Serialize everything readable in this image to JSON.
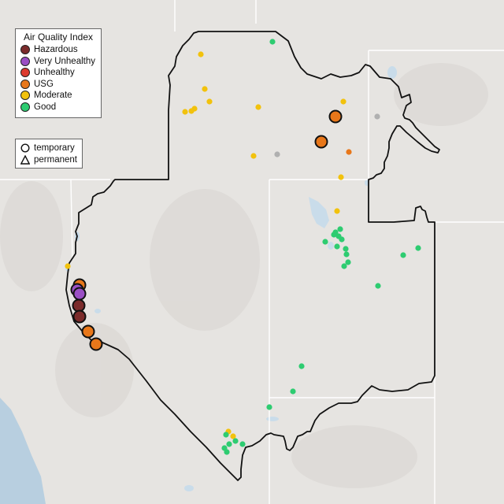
{
  "legend": {
    "title": "Air Quality Index",
    "categories": [
      {
        "label": "Hazardous",
        "color": "#7b2b2b"
      },
      {
        "label": "Very Unhealthy",
        "color": "#9a4fc4"
      },
      {
        "label": "Unhealthy",
        "color": "#dc3b2f"
      },
      {
        "label": "USG",
        "color": "#e8771a"
      },
      {
        "label": "Moderate",
        "color": "#f2c20d"
      },
      {
        "label": "Good",
        "color": "#2ecc71"
      }
    ],
    "types": [
      {
        "label": "temporary",
        "shape": "circle-icon"
      },
      {
        "label": "permanent",
        "shape": "triangle-icon"
      }
    ]
  },
  "map_colors": {
    "land": "#e6e4e1",
    "ocean": "#b8cfe0",
    "water": "#c9dcea",
    "boundary": "#111111",
    "state_line": "#ffffff",
    "no_data": "#b0b0b0"
  }
}
